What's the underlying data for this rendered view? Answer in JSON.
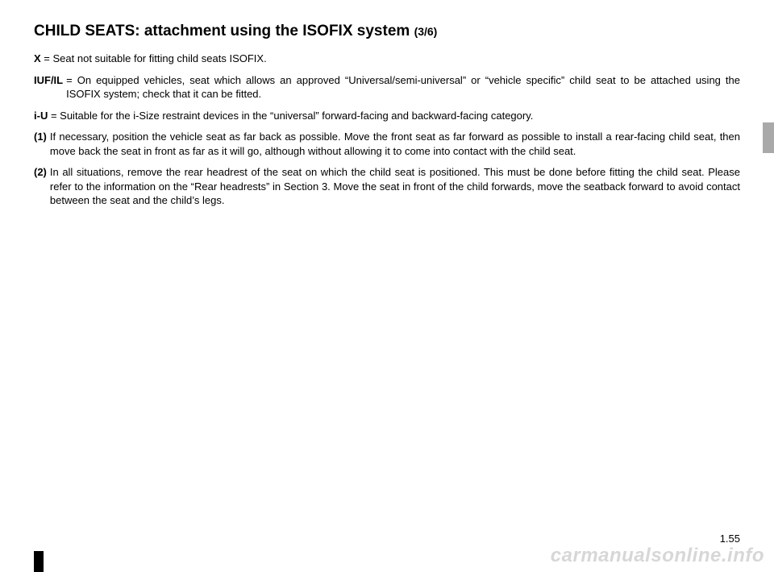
{
  "title": {
    "main": "CHILD SEATS: attachment using the ISOFIX system ",
    "sub": "(3/6)"
  },
  "definitions": [
    {
      "label": "X ",
      "text": " = Seat not suitable for fitting child seats ISOFIX.",
      "hanging": false
    },
    {
      "label": "IUF/IL ",
      "text": "= On equipped vehicles, seat which allows an approved “Universal/semi-universal” or “vehicle specific” child seat to be attached using the ISOFIX system; check that it can be fitted.",
      "hanging": true
    },
    {
      "label": "i-U ",
      "text": "= Suitable for the i-Size restraint devices in the “universal” forward-facing and backward-facing category.",
      "hanging": false
    },
    {
      "label": "(1) ",
      "text": "If necessary, position the vehicle seat as far back as possible. Move the front seat as far forward as possible to install a rear-facing child seat, then move back the seat in front as far as it will go, although without allowing it to come into contact with the child seat.",
      "hanging": true
    },
    {
      "label": "(2) ",
      "text": "In all situations, remove the rear headrest of the seat on which the child seat is positioned. This must be done before fitting the child seat. Please refer to the information on the “Rear headrests” in Section 3. Move the seat in front of the child forwards, move the seatback forward to avoid contact between the seat and the child’s legs.",
      "hanging": true
    }
  ],
  "page_number": "1.55",
  "watermark": "carmanualsonline.info",
  "colors": {
    "background": "#ffffff",
    "text": "#000000",
    "side_tab": "#a9a9a9",
    "watermark": "#d7d7d7",
    "bottom_mark": "#000000"
  }
}
